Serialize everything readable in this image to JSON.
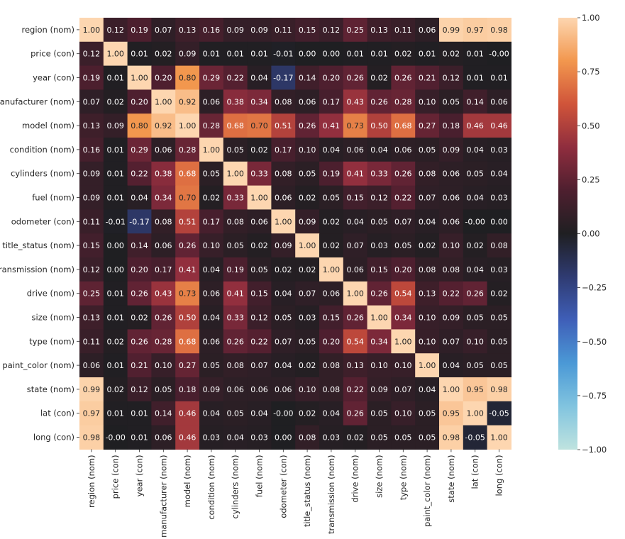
{
  "chart_data": {
    "type": "heatmap",
    "labels": [
      "region (nom)",
      "price (con)",
      "year (con)",
      "manufacturer (nom)",
      "model (nom)",
      "condition (nom)",
      "cylinders (nom)",
      "fuel (nom)",
      "odometer (con)",
      "title_status (nom)",
      "transmission (nom)",
      "drive (nom)",
      "size (nom)",
      "type (nom)",
      "paint_color (nom)",
      "state (nom)",
      "lat (con)",
      "long (con)"
    ],
    "values": [
      [
        1.0,
        0.12,
        0.19,
        0.07,
        0.13,
        0.16,
        0.09,
        0.09,
        0.11,
        0.15,
        0.12,
        0.25,
        0.13,
        0.11,
        0.06,
        0.99,
        0.97,
        0.98
      ],
      [
        0.12,
        1.0,
        0.01,
        0.02,
        0.09,
        0.01,
        0.01,
        0.01,
        -0.01,
        0.0,
        0.0,
        0.01,
        0.01,
        0.02,
        0.01,
        0.02,
        0.01,
        -0.0
      ],
      [
        0.19,
        0.01,
        1.0,
        0.2,
        0.8,
        0.29,
        0.22,
        0.04,
        -0.17,
        0.14,
        0.2,
        0.26,
        0.02,
        0.26,
        0.21,
        0.12,
        0.01,
        0.01
      ],
      [
        0.07,
        0.02,
        0.2,
        1.0,
        0.92,
        0.06,
        0.38,
        0.34,
        0.08,
        0.06,
        0.17,
        0.43,
        0.26,
        0.28,
        0.1,
        0.05,
        0.14,
        0.06
      ],
      [
        0.13,
        0.09,
        0.8,
        0.92,
        1.0,
        0.28,
        0.68,
        0.7,
        0.51,
        0.26,
        0.41,
        0.73,
        0.5,
        0.68,
        0.27,
        0.18,
        0.46,
        0.46
      ],
      [
        0.16,
        0.01,
        0.29,
        0.06,
        0.28,
        1.0,
        0.05,
        0.02,
        0.17,
        0.1,
        0.04,
        0.06,
        0.04,
        0.06,
        0.05,
        0.09,
        0.04,
        0.03
      ],
      [
        0.09,
        0.01,
        0.22,
        0.38,
        0.68,
        0.05,
        1.0,
        0.33,
        0.08,
        0.05,
        0.19,
        0.41,
        0.33,
        0.26,
        0.08,
        0.06,
        0.05,
        0.04
      ],
      [
        0.09,
        0.01,
        0.04,
        0.34,
        0.7,
        0.02,
        0.33,
        1.0,
        0.06,
        0.02,
        0.05,
        0.15,
        0.12,
        0.22,
        0.07,
        0.06,
        0.04,
        0.03
      ],
      [
        0.11,
        -0.01,
        -0.17,
        0.08,
        0.51,
        0.17,
        0.08,
        0.06,
        1.0,
        0.09,
        0.02,
        0.04,
        0.05,
        0.07,
        0.04,
        0.06,
        -0.0,
        0.0
      ],
      [
        0.15,
        0.0,
        0.14,
        0.06,
        0.26,
        0.1,
        0.05,
        0.02,
        0.09,
        1.0,
        0.02,
        0.07,
        0.03,
        0.05,
        0.02,
        0.1,
        0.02,
        0.08
      ],
      [
        0.12,
        0.0,
        0.2,
        0.17,
        0.41,
        0.04,
        0.19,
        0.05,
        0.02,
        0.02,
        1.0,
        0.06,
        0.15,
        0.2,
        0.08,
        0.08,
        0.04,
        0.03
      ],
      [
        0.25,
        0.01,
        0.26,
        0.43,
        0.73,
        0.06,
        0.41,
        0.15,
        0.04,
        0.07,
        0.06,
        1.0,
        0.26,
        0.54,
        0.13,
        0.22,
        0.26,
        0.02
      ],
      [
        0.13,
        0.01,
        0.02,
        0.26,
        0.5,
        0.04,
        0.33,
        0.12,
        0.05,
        0.03,
        0.15,
        0.26,
        1.0,
        0.34,
        0.1,
        0.09,
        0.05,
        0.05
      ],
      [
        0.11,
        0.02,
        0.26,
        0.28,
        0.68,
        0.06,
        0.26,
        0.22,
        0.07,
        0.05,
        0.2,
        0.54,
        0.34,
        1.0,
        0.1,
        0.07,
        0.1,
        0.05
      ],
      [
        0.06,
        0.01,
        0.21,
        0.1,
        0.27,
        0.05,
        0.08,
        0.07,
        0.04,
        0.02,
        0.08,
        0.13,
        0.1,
        0.1,
        1.0,
        0.04,
        0.05,
        0.05
      ],
      [
        0.99,
        0.02,
        0.12,
        0.05,
        0.18,
        0.09,
        0.06,
        0.06,
        0.06,
        0.1,
        0.08,
        0.22,
        0.09,
        0.07,
        0.04,
        1.0,
        0.95,
        0.98
      ],
      [
        0.97,
        0.01,
        0.01,
        0.14,
        0.46,
        0.04,
        0.05,
        0.04,
        -0.0,
        0.02,
        0.04,
        0.26,
        0.05,
        0.1,
        0.05,
        0.95,
        1.0,
        -0.05
      ],
      [
        0.98,
        -0.0,
        0.01,
        0.06,
        0.46,
        0.03,
        0.04,
        0.03,
        0.0,
        0.08,
        0.03,
        0.02,
        0.05,
        0.05,
        0.05,
        0.98,
        -0.05,
        1.0
      ]
    ],
    "value_format": "two decimals",
    "vmin": -1.0,
    "vmax": 1.0,
    "colormap": "icefire",
    "colorbar_ticks": [
      1.0,
      0.75,
      0.5,
      0.25,
      0.0,
      -0.25,
      -0.5,
      -0.75,
      -1.0
    ],
    "colorbar_tick_labels": [
      "1.00",
      "0.75",
      "0.50",
      "0.25",
      "0.00",
      "−0.25",
      "−0.50",
      "−0.75",
      "−1.00"
    ],
    "colorbar_placement": "right",
    "title": "",
    "xlabel": "",
    "ylabel": "",
    "grid": false,
    "legend": "none"
  },
  "colors": {
    "background": "#ffffff",
    "text": "#262626",
    "annotation_light": "#ffffff",
    "annotation_dark": "#262626",
    "colormap_stops": [
      "#bfe3df",
      "#81c4df",
      "#4b99d6",
      "#3f5fb8",
      "#2f3b72",
      "#1f1f22",
      "#4e1f2f",
      "#8f2d3e",
      "#d0543a",
      "#f2974e",
      "#fdd6b0"
    ]
  }
}
